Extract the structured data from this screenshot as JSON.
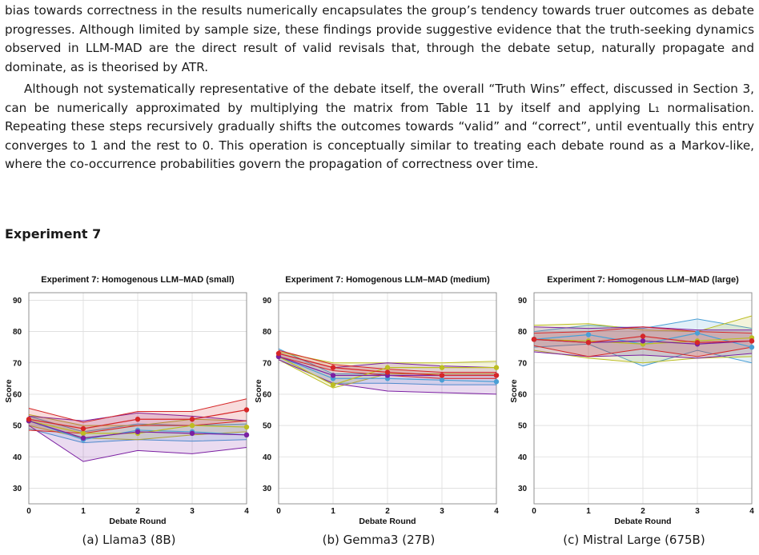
{
  "paragraphs": [
    "bias towards correctness in the results numerically encapsulates the group’s tendency towards truer outcomes as debate progresses. Although limited by sample size, these findings provide suggestive evidence that the truth-seeking dynamics observed in LLM-MAD are the direct result of valid revisals that, through the debate setup, naturally propagate and dominate, as is theorised by ATR.",
    "Although not systematically representative of the debate itself, the overall “Truth Wins” effect, discussed in Section 3, can be numerically approximated by multiplying the matrix from Table 11 by itself and applying L₁ normalisation. Repeating these steps recursively gradually shifts the outcomes towards “valid” and “correct”, until eventually this entry converges to 1 and the rest to 0. This operation is conceptually similar to treating each debate round as a Markov-like, where the co-occurrence probabilities govern the propagation of correctness over time."
  ],
  "section_title": "Experiment 7",
  "captions": [
    "(a) Llama3 (8B)",
    "(b) Gemma3 (27B)",
    "(c) Mistral Large (675B)"
  ],
  "colors": {
    "blue": "#4a9fd5",
    "red": "#d62728",
    "olive": "#bcbd22",
    "purple": "#7b1fa2",
    "orange": "#ff8c00"
  },
  "chart_data": [
    {
      "type": "line",
      "title": "Experiment 7: Homogenous LLM–MAD (small)",
      "xlabel": "Debate Round",
      "ylabel": "Score",
      "x": [
        0,
        1,
        2,
        3,
        4
      ],
      "xlim": [
        0,
        4
      ],
      "ylim": [
        25,
        97
      ],
      "yticks": [
        30,
        40,
        50,
        60,
        70,
        80,
        90
      ],
      "grid": true,
      "series": [
        {
          "color": "#4a9fd5",
          "values": [
            51.5,
            45.5,
            48.5,
            48,
            47
          ],
          "band_low": [
            49,
            44.5,
            45.5,
            45,
            45.5
          ],
          "band_high": [
            53,
            48,
            50.5,
            50,
            50.5
          ]
        },
        {
          "color": "#bcbd22",
          "values": [
            51.5,
            47.5,
            47.5,
            50,
            49.5
          ],
          "band_low": [
            50,
            46,
            45.5,
            47,
            48
          ],
          "band_high": [
            53.5,
            50,
            50,
            52,
            51.5
          ]
        },
        {
          "color": "#7b1fa2",
          "values": [
            51.5,
            46,
            48,
            47.5,
            47
          ],
          "band_low": [
            50,
            38.5,
            42,
            41,
            43
          ],
          "band_high": [
            53,
            51.5,
            54,
            53,
            51.5
          ]
        },
        {
          "color": "#d62728",
          "values": [
            52,
            49,
            52,
            52,
            55
          ],
          "band_low": [
            48.5,
            47.5,
            50,
            50,
            51.5
          ],
          "band_high": [
            55.5,
            51,
            54.5,
            54.5,
            58.5
          ]
        }
      ]
    },
    {
      "type": "line",
      "title": "Experiment 7: Homogenous LLM–MAD (medium)",
      "xlabel": "Debate Round",
      "ylabel": "Score",
      "x": [
        0,
        1,
        2,
        3,
        4
      ],
      "xlim": [
        0,
        4
      ],
      "ylim": [
        25,
        97
      ],
      "yticks": [
        30,
        40,
        50,
        60,
        70,
        80,
        90
      ],
      "grid": true,
      "series": [
        {
          "color": "#4a9fd5",
          "values": [
            72,
            65,
            65,
            64.5,
            64
          ],
          "band_low": [
            71,
            63.5,
            63.5,
            63,
            63
          ],
          "band_high": [
            74.5,
            66.5,
            66.5,
            66.5,
            66.5
          ]
        },
        {
          "color": "#bcbd22",
          "values": [
            72,
            63,
            68.5,
            68.5,
            68.5
          ],
          "band_low": [
            71,
            62,
            66.5,
            66.5,
            66.5
          ],
          "band_high": [
            73.5,
            70,
            70,
            70,
            70.5
          ]
        },
        {
          "color": "#7b1fa2",
          "values": [
            72,
            66,
            66,
            66,
            66
          ],
          "band_low": [
            71,
            63.5,
            61,
            60.5,
            60
          ],
          "band_high": [
            73,
            68.5,
            70,
            69,
            68.5
          ]
        },
        {
          "color": "#d62728",
          "values": [
            73,
            68.5,
            67,
            66,
            66
          ],
          "band_low": [
            72,
            67.5,
            66,
            65,
            65
          ],
          "band_high": [
            74,
            69.5,
            68,
            67,
            67
          ]
        }
      ]
    },
    {
      "type": "line",
      "title": "Experiment 7: Homogenous LLM–MAD (large)",
      "xlabel": "Debate Round",
      "ylabel": "Score",
      "x": [
        0,
        1,
        2,
        3,
        4
      ],
      "xlim": [
        0,
        4
      ],
      "ylim": [
        25,
        97
      ],
      "yticks": [
        30,
        40,
        50,
        60,
        70,
        80,
        90
      ],
      "grid": true,
      "series": [
        {
          "color": "#4a9fd5",
          "values": [
            77.5,
            79,
            76,
            79.5,
            75
          ],
          "band_low": [
            75,
            76,
            69,
            74,
            70
          ],
          "band_high": [
            80,
            82,
            81,
            84,
            81
          ]
        },
        {
          "color": "#bcbd22",
          "values": [
            77.5,
            77,
            76,
            77,
            78
          ],
          "band_low": [
            74,
            71.5,
            70,
            71.5,
            72
          ],
          "band_high": [
            82,
            82.5,
            80.5,
            80,
            85
          ]
        },
        {
          "color": "#7b1fa2",
          "values": [
            77.5,
            76.5,
            77,
            76,
            77
          ],
          "band_low": [
            73.5,
            72,
            72.5,
            71.5,
            73
          ],
          "band_high": [
            81.5,
            81,
            81.5,
            80.5,
            80.5
          ]
        },
        {
          "color": "#d62728",
          "values": [
            77.5,
            76.5,
            78.5,
            76.5,
            77
          ],
          "band_low": [
            75.5,
            72,
            74.5,
            72,
            75
          ],
          "band_high": [
            79.5,
            80,
            81.5,
            80,
            79.5
          ]
        }
      ]
    }
  ]
}
